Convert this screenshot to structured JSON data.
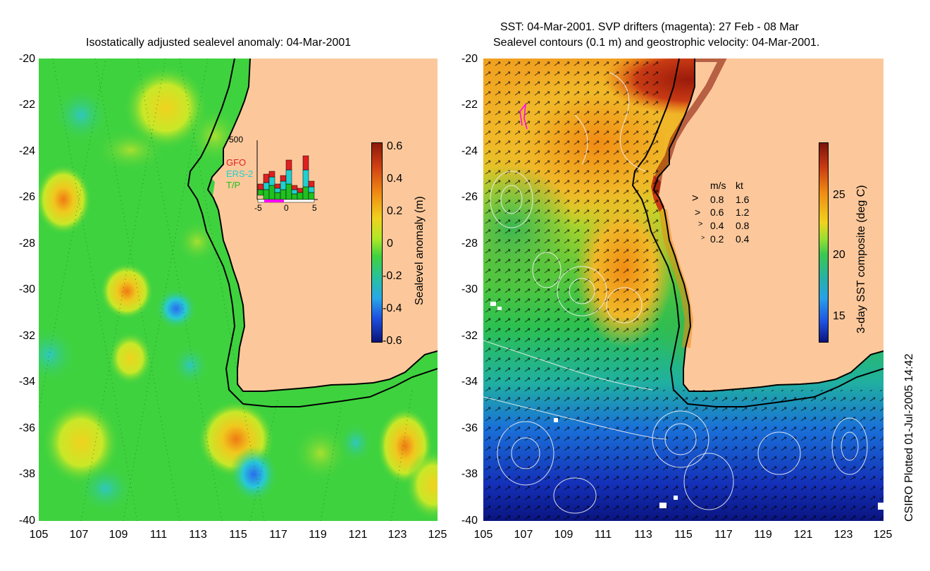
{
  "left": {
    "title": "Isostatically adjusted sealevel anomaly: 04-Mar-2001",
    "colorbar_label": "Sealevel anomaly (m)",
    "colorbar_ticks": [
      "0.6",
      "0.4",
      "0.2",
      "0",
      "-0.2",
      "-0.4",
      "-0.6"
    ],
    "satellites": [
      "GFO",
      "ERS-2",
      "T/P"
    ],
    "inset_ymax": "500",
    "inset_xticks": [
      "-5",
      "0",
      "5"
    ]
  },
  "right": {
    "title_line1": "SST: 04-Mar-2001. SVP drifters (magenta): 27 Feb - 08 Mar",
    "title_line2": "Sealevel contours (0.1 m) and geostrophic velocity: 04-Mar-2001.",
    "colorbar_label": "3-day SST composite (deg C)",
    "colorbar_ticks": [
      "25",
      "20",
      "15"
    ],
    "legend_header_ms": "m/s",
    "legend_header_kt": "kt",
    "legend_rows": [
      {
        "ms": "0.8",
        "kt": "1.6"
      },
      {
        "ms": "0.6",
        "kt": "1.2"
      },
      {
        "ms": "0.4",
        "kt": "0.8"
      },
      {
        "ms": "0.2",
        "kt": "0.4"
      }
    ]
  },
  "y_ticks": [
    "-20",
    "-22",
    "-24",
    "-26",
    "-28",
    "-30",
    "-32",
    "-34",
    "-36",
    "-38",
    "-40"
  ],
  "x_ticks": [
    "105",
    "107",
    "109",
    "111",
    "113",
    "115",
    "117",
    "119",
    "121",
    "123",
    "125"
  ],
  "credit": "CSIRO Plotted 01-Jul-2005 14:42",
  "colors": {
    "land": "#fcc89b",
    "ocean_green": "#3fd23f",
    "shelf_line": "#000000",
    "drifter": "#ff00ff"
  }
}
